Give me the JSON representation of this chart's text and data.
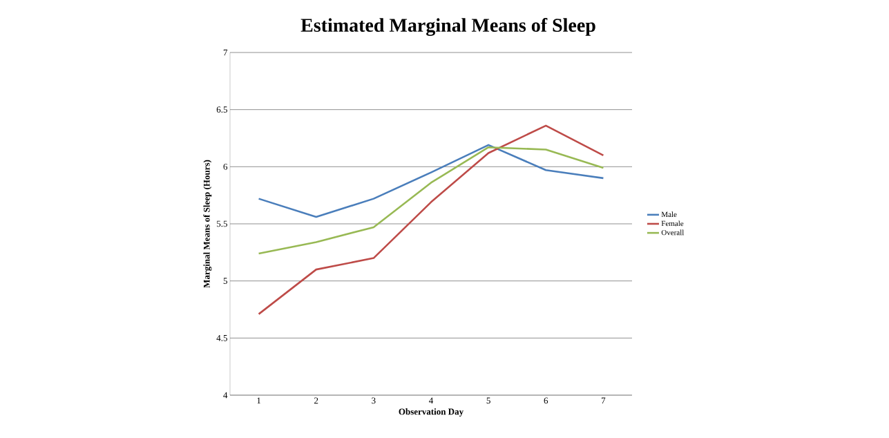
{
  "chart_data": {
    "type": "line",
    "title": "Estimated Marginal Means of Sleep",
    "xlabel": "Observation Day",
    "ylabel": "Marginal Means of Sleep (Hours)",
    "categories": [
      "1",
      "2",
      "3",
      "4",
      "5",
      "6",
      "7"
    ],
    "series": [
      {
        "name": "Male",
        "color": "#4a7ebb",
        "values": [
          5.72,
          5.56,
          5.72,
          5.95,
          6.19,
          5.97,
          5.9
        ]
      },
      {
        "name": "Female",
        "color": "#be4b48",
        "values": [
          4.71,
          5.1,
          5.2,
          5.69,
          6.12,
          6.36,
          6.1
        ]
      },
      {
        "name": "Overall",
        "color": "#98b954",
        "values": [
          5.24,
          5.34,
          5.47,
          5.86,
          6.17,
          6.15,
          5.99
        ]
      }
    ],
    "ylim": [
      4,
      7
    ],
    "yticks": [
      4,
      4.5,
      5,
      5.5,
      6,
      6.5,
      7
    ],
    "grid": "y",
    "legend": "right",
    "marker": "none",
    "line_style": "solid"
  }
}
